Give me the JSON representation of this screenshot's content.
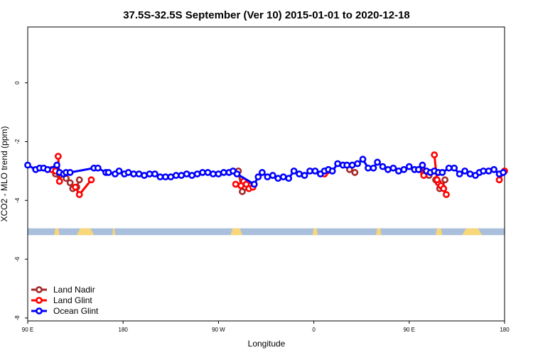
{
  "chart_data": {
    "type": "line",
    "title": "37.5S-32.5S September (Ver 10)   2015-01-01 to 2020-12-18",
    "xlabel": "Longitude",
    "ylabel": "XCO2 - MLO trend (ppm)",
    "xlim": [
      90,
      450
    ],
    "ylim": [
      -8.1,
      1.9
    ],
    "x_ticks": [
      {
        "value": 90,
        "label": "90 E"
      },
      {
        "value": 162,
        "label": "180"
      },
      {
        "value": 234,
        "label": "90 W"
      },
      {
        "value": 306,
        "label": "0"
      },
      {
        "value": 378,
        "label": "90 E"
      },
      {
        "value": 450,
        "label": "180"
      }
    ],
    "y_ticks": [
      0,
      -2,
      -4,
      -6,
      -8
    ],
    "grid": false,
    "legend_position": "bottom-left",
    "map_strip": {
      "y_from": -5.18,
      "y_to": -4.95,
      "ocean_color": "#a9bfdc",
      "land_color": "#f7d77a",
      "land_ranges": [
        [
          110,
          114
        ],
        [
          127,
          140
        ],
        [
          154,
          156
        ],
        [
          243,
          252
        ],
        [
          305,
          309
        ],
        [
          353,
          357
        ],
        [
          398,
          403
        ],
        [
          418,
          433
        ]
      ]
    },
    "series": [
      {
        "name": "Land Nadir",
        "color": "#a52a2a",
        "segments": [
          [
            [
              111,
              -3.1
            ],
            [
              114,
              -3.15
            ]
          ],
          [
            [
              119,
              -3.25
            ],
            [
              122,
              -3.4
            ],
            [
              124,
              -3.6
            ],
            [
              127,
              -3.55
            ],
            [
              129,
              -3.3
            ]
          ],
          [
            [
              249,
              -3.0
            ],
            [
              252,
              -3.7
            ],
            [
              254,
              -3.55
            ],
            [
              258,
              -3.5
            ]
          ],
          [
            [
              333,
              -2.95
            ],
            [
              337,
              -3.05
            ]
          ],
          [
            [
              389,
              -3.1
            ],
            [
              393,
              -3.15
            ]
          ],
          [
            [
              398,
              -3.3
            ],
            [
              401,
              -3.6
            ],
            [
              403,
              -3.55
            ],
            [
              405,
              -3.3
            ]
          ]
        ]
      },
      {
        "name": "Land Glint",
        "color": "#ff0000",
        "segments": [
          [
            [
              108,
              -2.95
            ],
            [
              111,
              -3.0
            ]
          ],
          [
            [
              126,
              -3.55
            ],
            [
              129,
              -3.8
            ],
            [
              138,
              -3.3
            ]
          ],
          [
            [
              247,
              -3.45
            ],
            [
              251,
              -3.5
            ],
            [
              253,
              -3.35
            ],
            [
              255,
              -3.45
            ],
            [
              257,
              -3.6
            ],
            [
              260,
              -3.55
            ]
          ],
          [
            [
              314,
              -3.1
            ],
            [
              316,
              -3.0
            ]
          ],
          [
            [
              386,
              -2.95
            ],
            [
              389,
              -3.15
            ]
          ],
          [
            [
              400,
              -3.4
            ],
            [
              402,
              -3.5
            ],
            [
              404,
              -3.6
            ],
            [
              406,
              -3.8
            ]
          ],
          [
            [
              446,
              -3.3
            ],
            [
              450,
              -3.0
            ]
          ],
          [
            [
              113,
              -2.5
            ],
            [
              114,
              -3.35
            ]
          ],
          [
            [
              397,
              -2.45
            ],
            [
              399,
              -3.3
            ]
          ]
        ]
      },
      {
        "name": "Ocean Glint",
        "color": "#0000ff",
        "points": [
          [
            90,
            -2.8
          ],
          [
            96,
            -2.95
          ],
          [
            99,
            -2.9
          ],
          [
            102,
            -2.9
          ],
          [
            105,
            -2.95
          ],
          [
            112,
            -2.8
          ],
          [
            114,
            -3.05
          ],
          [
            117,
            -3.1
          ],
          [
            119,
            -3.05
          ],
          [
            122,
            -3.05
          ],
          [
            140,
            -2.9
          ],
          [
            143,
            -2.9
          ],
          [
            149,
            -3.05
          ],
          [
            151,
            -3.05
          ],
          [
            156,
            -3.1
          ],
          [
            159,
            -3.0
          ],
          [
            163,
            -3.1
          ],
          [
            166,
            -3.05
          ],
          [
            170,
            -3.1
          ],
          [
            174,
            -3.1
          ],
          [
            178,
            -3.15
          ],
          [
            182,
            -3.1
          ],
          [
            186,
            -3.1
          ],
          [
            190,
            -3.2
          ],
          [
            194,
            -3.2
          ],
          [
            198,
            -3.2
          ],
          [
            202,
            -3.15
          ],
          [
            206,
            -3.15
          ],
          [
            210,
            -3.1
          ],
          [
            214,
            -3.15
          ],
          [
            218,
            -3.1
          ],
          [
            222,
            -3.05
          ],
          [
            226,
            -3.05
          ],
          [
            230,
            -3.1
          ],
          [
            234,
            -3.1
          ],
          [
            238,
            -3.05
          ],
          [
            242,
            -3.05
          ],
          [
            245,
            -3.0
          ],
          [
            248,
            -3.1
          ],
          [
            261,
            -3.45
          ],
          [
            264,
            -3.2
          ],
          [
            267,
            -3.05
          ],
          [
            271,
            -3.2
          ],
          [
            275,
            -3.15
          ],
          [
            279,
            -3.25
          ],
          [
            283,
            -3.2
          ],
          [
            287,
            -3.25
          ],
          [
            291,
            -3.0
          ],
          [
            295,
            -3.1
          ],
          [
            299,
            -3.15
          ],
          [
            303,
            -3.0
          ],
          [
            307,
            -3.0
          ],
          [
            311,
            -3.1
          ],
          [
            314,
            -3.0
          ],
          [
            317,
            -2.95
          ],
          [
            320,
            -3.0
          ],
          [
            324,
            -2.75
          ],
          [
            328,
            -2.8
          ],
          [
            331,
            -2.8
          ],
          [
            335,
            -2.8
          ],
          [
            339,
            -2.75
          ],
          [
            343,
            -2.6
          ],
          [
            347,
            -2.9
          ],
          [
            351,
            -2.9
          ],
          [
            354,
            -2.7
          ],
          [
            358,
            -2.85
          ],
          [
            362,
            -2.95
          ],
          [
            366,
            -2.9
          ],
          [
            370,
            -3.0
          ],
          [
            374,
            -2.95
          ],
          [
            378,
            -2.85
          ],
          [
            382,
            -2.95
          ],
          [
            385,
            -2.95
          ],
          [
            388,
            -2.8
          ],
          [
            391,
            -3.0
          ],
          [
            394,
            -3.05
          ],
          [
            397,
            -3.0
          ],
          [
            400,
            -3.05
          ],
          [
            403,
            -3.05
          ],
          [
            408,
            -2.9
          ],
          [
            412,
            -2.9
          ],
          [
            416,
            -3.1
          ],
          [
            420,
            -3.0
          ],
          [
            424,
            -3.1
          ],
          [
            428,
            -3.15
          ],
          [
            431,
            -3.05
          ],
          [
            434,
            -3.0
          ],
          [
            438,
            -3.0
          ],
          [
            442,
            -2.95
          ],
          [
            446,
            -3.1
          ],
          [
            449,
            -3.05
          ]
        ]
      }
    ]
  }
}
